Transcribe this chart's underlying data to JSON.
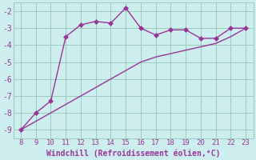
{
  "x": [
    8,
    9,
    10,
    11,
    12,
    13,
    14,
    15,
    16,
    17,
    18,
    19,
    20,
    21,
    22,
    23
  ],
  "y_line1": [
    -9.0,
    -8.0,
    -7.3,
    -3.5,
    -2.8,
    -2.6,
    -2.7,
    -1.8,
    -3.0,
    -3.4,
    -3.1,
    -3.1,
    -3.6,
    -3.6,
    -3.0,
    -3.0
  ],
  "y_line2": [
    -9.0,
    -8.5,
    -8.0,
    -7.5,
    -7.0,
    -6.5,
    -6.0,
    -5.5,
    -5.0,
    -4.7,
    -4.5,
    -4.3,
    -4.1,
    -3.9,
    -3.5,
    -3.0
  ],
  "line_color": "#993399",
  "bg_color": "#cceeee",
  "grid_color": "#99ccbb",
  "xlabel": "Windchill (Refroidissement éolien,°C)",
  "xlabel_color": "#993399",
  "xlim": [
    7.5,
    23.5
  ],
  "ylim": [
    -9.5,
    -1.5
  ],
  "yticks": [
    -9,
    -8,
    -7,
    -6,
    -5,
    -4,
    -3,
    -2
  ],
  "xticks": [
    8,
    9,
    10,
    11,
    12,
    13,
    14,
    15,
    16,
    17,
    18,
    19,
    20,
    21,
    22,
    23
  ],
  "tick_color": "#993399",
  "markersize": 3,
  "linewidth": 1.0
}
